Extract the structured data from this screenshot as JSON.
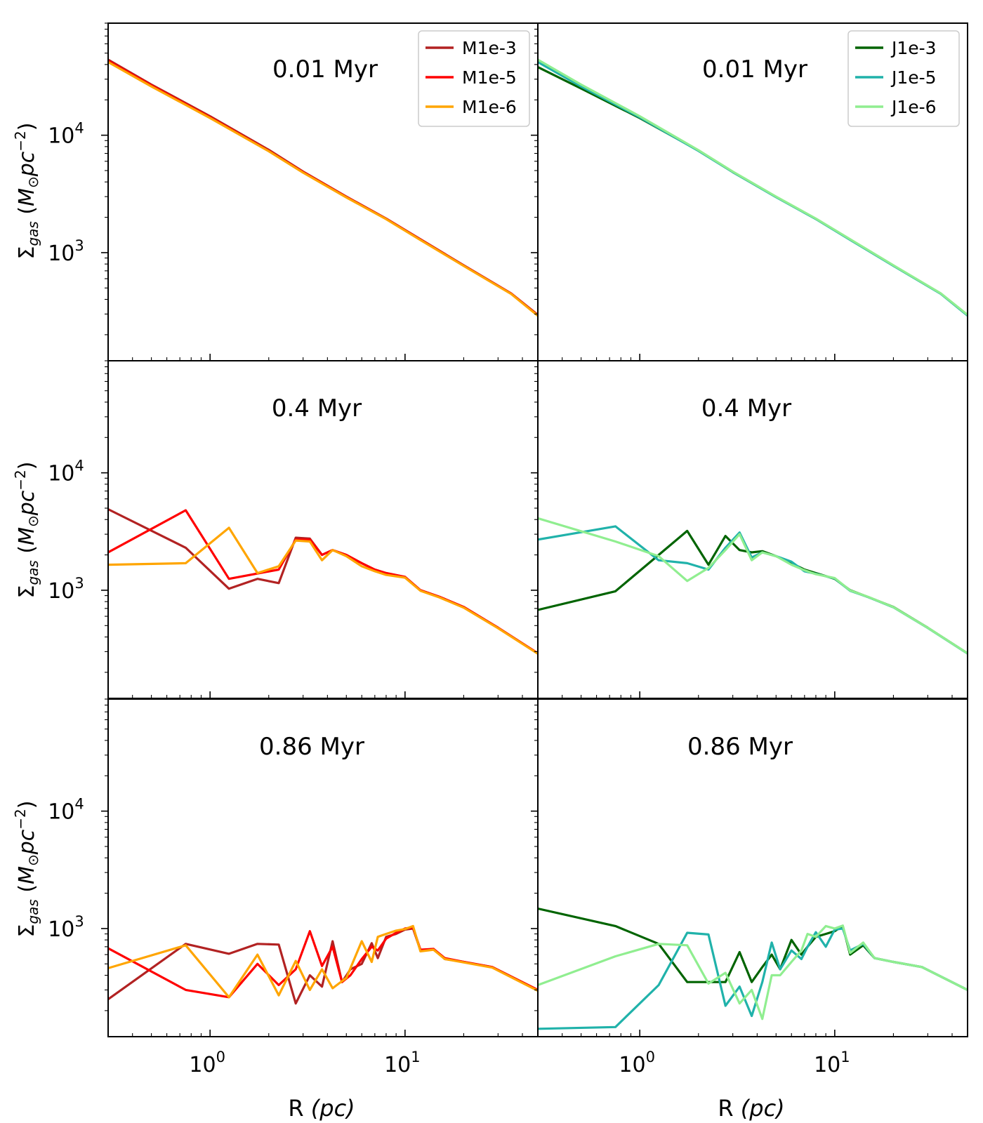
{
  "chart_data": [
    {
      "type": "line",
      "panel": "top-left",
      "title": "0.01 Myr",
      "xlabel": "R (pc)",
      "ylabel": "Σgas (M⊙pc−2)",
      "xscale": "log",
      "yscale": "log",
      "xlim": [
        0.3,
        48
      ],
      "ylim": [
        120,
        90000
      ],
      "xticks": [
        "10^0",
        "10^1"
      ],
      "yticks": [
        "10^3",
        "10^4"
      ],
      "legend": "top-right",
      "series": [
        {
          "name": "M1e-3",
          "color": "#b22222",
          "x": [
            0.3,
            0.5,
            1,
            2,
            3,
            5,
            8,
            12,
            20,
            35,
            48
          ],
          "y": [
            44000,
            27000,
            14500,
            7500,
            4900,
            3000,
            1950,
            1300,
            780,
            450,
            295
          ]
        },
        {
          "name": "M1e-5",
          "color": "#ff0000",
          "x": [
            0.3,
            0.5,
            1,
            2,
            3,
            5,
            8,
            12,
            20,
            35,
            48
          ],
          "y": [
            43000,
            26500,
            14200,
            7350,
            4850,
            2980,
            1940,
            1290,
            775,
            448,
            292
          ]
        },
        {
          "name": "M1e-6",
          "color": "#ffa500",
          "x": [
            0.3,
            0.5,
            1,
            2,
            3,
            5,
            8,
            12,
            20,
            35,
            48
          ],
          "y": [
            42000,
            26000,
            14000,
            7300,
            4800,
            2950,
            1930,
            1280,
            770,
            445,
            290
          ]
        }
      ]
    },
    {
      "type": "line",
      "panel": "top-right",
      "title": "0.01 Myr",
      "xlabel": "R (pc)",
      "ylabel": "",
      "xscale": "log",
      "yscale": "log",
      "xlim": [
        0.3,
        48
      ],
      "ylim": [
        120,
        90000
      ],
      "xticks": [
        "10^0",
        "10^1"
      ],
      "yticks": [],
      "legend": "top-right",
      "series": [
        {
          "name": "J1e-3",
          "color": "#006400",
          "x": [
            0.3,
            0.5,
            1,
            2,
            3,
            5,
            8,
            12,
            20,
            35,
            48
          ],
          "y": [
            38000,
            25000,
            14000,
            7400,
            4850,
            2980,
            1940,
            1290,
            775,
            448,
            292
          ]
        },
        {
          "name": "J1e-5",
          "color": "#20b2aa",
          "x": [
            0.3,
            0.5,
            1,
            2,
            3,
            5,
            8,
            12,
            20,
            35,
            48
          ],
          "y": [
            42000,
            26000,
            14200,
            7350,
            4850,
            2970,
            1935,
            1285,
            772,
            446,
            291
          ]
        },
        {
          "name": "J1e-6",
          "color": "#90ee90",
          "x": [
            0.3,
            0.5,
            1,
            2,
            3,
            5,
            8,
            12,
            20,
            35,
            48
          ],
          "y": [
            44000,
            27000,
            14500,
            7450,
            4900,
            3000,
            1950,
            1300,
            780,
            450,
            295
          ]
        }
      ]
    },
    {
      "type": "line",
      "panel": "middle-left",
      "title": "0.4 Myr",
      "xlabel": "R (pc)",
      "ylabel": "Σgas (M⊙pc−2)",
      "xscale": "log",
      "yscale": "log",
      "xlim": [
        0.3,
        48
      ],
      "ylim": [
        120,
        90000
      ],
      "xticks": [
        "10^0",
        "10^1"
      ],
      "yticks": [
        "10^3",
        "10^4"
      ],
      "series": [
        {
          "name": "M1e-3",
          "color": "#b22222",
          "x": [
            0.3,
            0.75,
            1.25,
            1.75,
            2.25,
            2.75,
            3.25,
            3.75,
            4.25,
            5,
            6,
            7,
            8,
            10,
            12,
            15,
            20,
            30,
            48
          ],
          "y": [
            4900,
            2300,
            1030,
            1250,
            1150,
            2800,
            2750,
            2000,
            2200,
            2000,
            1700,
            1500,
            1400,
            1300,
            1000,
            880,
            720,
            480,
            290
          ]
        },
        {
          "name": "M1e-5",
          "color": "#ff0000",
          "x": [
            0.3,
            0.75,
            1.25,
            2.25,
            2.75,
            3.25,
            3.75,
            4.25,
            5,
            6,
            7,
            8,
            10,
            12,
            15,
            20,
            30,
            48
          ],
          "y": [
            2100,
            4800,
            1250,
            1500,
            2700,
            2700,
            2000,
            2200,
            2000,
            1700,
            1500,
            1400,
            1300,
            1000,
            880,
            720,
            480,
            290
          ]
        },
        {
          "name": "M1e-6",
          "color": "#ffa500",
          "x": [
            0.3,
            0.75,
            1.25,
            1.75,
            2.25,
            2.75,
            3.25,
            3.75,
            4.25,
            5,
            6,
            7,
            8,
            10,
            12,
            15,
            20,
            30,
            48
          ],
          "y": [
            1650,
            1700,
            3400,
            1400,
            1600,
            2650,
            2600,
            1800,
            2200,
            1950,
            1600,
            1450,
            1350,
            1280,
            990,
            870,
            710,
            475,
            288
          ]
        }
      ]
    },
    {
      "type": "line",
      "panel": "middle-right",
      "title": "0.4 Myr",
      "xlabel": "R (pc)",
      "ylabel": "",
      "xscale": "log",
      "yscale": "log",
      "xlim": [
        0.3,
        48
      ],
      "ylim": [
        120,
        90000
      ],
      "xticks": [
        "10^0",
        "10^1"
      ],
      "yticks": [],
      "series": [
        {
          "name": "J1e-3",
          "color": "#006400",
          "x": [
            0.3,
            0.75,
            1.25,
            1.75,
            2.25,
            2.75,
            3.25,
            3.75,
            4.25,
            5,
            6,
            7,
            8,
            10,
            12,
            15,
            20,
            30,
            48
          ],
          "y": [
            680,
            980,
            2000,
            3200,
            1650,
            2900,
            2200,
            2100,
            2150,
            1950,
            1700,
            1500,
            1400,
            1250,
            1000,
            870,
            720,
            480,
            290
          ]
        },
        {
          "name": "J1e-5",
          "color": "#20b2aa",
          "x": [
            0.3,
            0.75,
            1.25,
            1.75,
            2.25,
            2.75,
            3.25,
            3.75,
            4.25,
            5,
            6,
            7,
            8,
            10,
            12,
            15,
            20,
            30,
            48
          ],
          "y": [
            2700,
            3500,
            1800,
            1700,
            1500,
            2300,
            3100,
            1900,
            2100,
            1950,
            1750,
            1450,
            1380,
            1260,
            990,
            870,
            715,
            478,
            289
          ]
        },
        {
          "name": "J1e-6",
          "color": "#90ee90",
          "x": [
            0.3,
            0.75,
            1.25,
            1.75,
            2.25,
            2.75,
            3.25,
            3.75,
            4.25,
            5,
            6,
            7,
            8,
            10,
            12,
            15,
            20,
            30,
            48
          ],
          "y": [
            4100,
            2600,
            1950,
            1200,
            1550,
            2200,
            3000,
            1800,
            2100,
            1950,
            1650,
            1480,
            1370,
            1270,
            995,
            872,
            718,
            479,
            290
          ]
        }
      ]
    },
    {
      "type": "line",
      "panel": "bottom-left",
      "title": "0.86 Myr",
      "xlabel": "R (pc)",
      "ylabel": "Σgas (M⊙pc−2)",
      "xscale": "log",
      "yscale": "log",
      "xlim": [
        0.3,
        48
      ],
      "ylim": [
        120,
        90000
      ],
      "xticks": [
        "10^0",
        "10^1"
      ],
      "yticks": [
        "10^3",
        "10^4"
      ],
      "series": [
        {
          "name": "M1e-3",
          "color": "#b22222",
          "x": [
            0.3,
            0.75,
            1.25,
            1.75,
            2.25,
            2.75,
            3.25,
            3.75,
            4.25,
            4.75,
            5.25,
            6,
            6.75,
            7.25,
            8,
            9,
            10,
            11,
            12,
            14,
            16,
            20,
            28,
            48
          ],
          "y": [
            250,
            740,
            610,
            740,
            730,
            230,
            400,
            320,
            780,
            350,
            450,
            500,
            750,
            560,
            850,
            900,
            980,
            1000,
            650,
            670,
            550,
            520,
            470,
            300
          ]
        },
        {
          "name": "M1e-5",
          "color": "#ff0000",
          "x": [
            0.3,
            0.75,
            1.25,
            1.75,
            2.25,
            2.75,
            3.25,
            3.75,
            4.25,
            4.75,
            5.25,
            6,
            6.75,
            7.25,
            8,
            9,
            10,
            11,
            12,
            14,
            16,
            20,
            28,
            48
          ],
          "y": [
            680,
            300,
            260,
            500,
            330,
            450,
            950,
            480,
            700,
            350,
            400,
            550,
            700,
            650,
            820,
            920,
            1000,
            1020,
            660,
            670,
            560,
            520,
            470,
            300
          ]
        },
        {
          "name": "M1e-6",
          "color": "#ffa500",
          "x": [
            0.3,
            0.75,
            1.25,
            1.75,
            2.25,
            2.75,
            3.25,
            3.75,
            4.25,
            5,
            6,
            6.75,
            7.25,
            8,
            9,
            10,
            11,
            12,
            14,
            16,
            20,
            28,
            48
          ],
          "y": [
            460,
            720,
            260,
            600,
            270,
            530,
            300,
            450,
            310,
            380,
            780,
            520,
            850,
            900,
            960,
            990,
            1050,
            640,
            660,
            550,
            515,
            465,
            295
          ]
        }
      ]
    },
    {
      "type": "line",
      "panel": "bottom-right",
      "title": "0.86 Myr",
      "xlabel": "R (pc)",
      "ylabel": "",
      "xscale": "log",
      "yscale": "log",
      "xlim": [
        0.3,
        48
      ],
      "ylim": [
        120,
        90000
      ],
      "xticks": [
        "10^0",
        "10^1"
      ],
      "yticks": [],
      "series": [
        {
          "name": "J1e-3",
          "color": "#006400",
          "x": [
            0.3,
            0.75,
            1.25,
            1.75,
            2.25,
            2.75,
            3.25,
            3.75,
            4.25,
            4.75,
            5.25,
            6,
            6.75,
            7.25,
            8,
            9,
            10,
            11,
            12,
            14,
            16,
            20,
            28,
            48
          ],
          "y": [
            1480,
            1050,
            740,
            350,
            350,
            350,
            630,
            350,
            470,
            600,
            450,
            800,
            600,
            700,
            850,
            900,
            950,
            1050,
            600,
            720,
            560,
            520,
            470,
            300
          ]
        },
        {
          "name": "J1e-5",
          "color": "#20b2aa",
          "x": [
            0.3,
            0.75,
            1.25,
            1.75,
            2.25,
            2.75,
            3.25,
            3.75,
            4.25,
            4.75,
            5.25,
            6,
            6.75,
            7.25,
            8,
            9,
            10,
            11,
            12,
            14,
            16,
            20,
            28,
            48
          ],
          "y": [
            140,
            145,
            330,
            920,
            890,
            220,
            320,
            180,
            350,
            760,
            450,
            650,
            550,
            700,
            930,
            700,
            980,
            1000,
            650,
            740,
            560,
            520,
            470,
            300
          ]
        },
        {
          "name": "J1e-6",
          "color": "#90ee90",
          "x": [
            0.3,
            0.75,
            1.25,
            1.75,
            2.25,
            2.75,
            3.25,
            3.75,
            4.25,
            4.75,
            5.25,
            6,
            6.75,
            7.25,
            8,
            9,
            10,
            11,
            12,
            14,
            16,
            20,
            28,
            48
          ],
          "y": [
            330,
            580,
            740,
            720,
            340,
            420,
            230,
            300,
            170,
            400,
            400,
            520,
            650,
            900,
            850,
            1050,
            1000,
            1060,
            620,
            760,
            560,
            520,
            470,
            300
          ]
        }
      ]
    }
  ]
}
